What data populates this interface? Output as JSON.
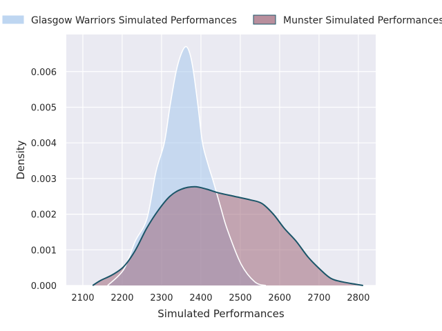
{
  "chart_data": {
    "type": "area",
    "title": "",
    "xlabel": "Simulated Performances",
    "ylabel": "Density",
    "xlim": [
      2058,
      2844
    ],
    "ylim": [
      0,
      0.00704
    ],
    "xticks": [
      2100,
      2200,
      2300,
      2400,
      2500,
      2600,
      2700,
      2800
    ],
    "yticks": [
      "0.000",
      "0.001",
      "0.002",
      "0.003",
      "0.004",
      "0.005",
      "0.006"
    ],
    "grid": true,
    "legend_position": "top-outside",
    "series": [
      {
        "name": "Glasgow Warriors Simulated Performances",
        "fill": "#a8c8ec",
        "line": "#ffffff",
        "points": [
          [
            2163,
            0
          ],
          [
            2204,
            0.00045
          ],
          [
            2233,
            0.00124
          ],
          [
            2263,
            0.00188
          ],
          [
            2286,
            0.0032
          ],
          [
            2307,
            0.004
          ],
          [
            2321,
            0.005
          ],
          [
            2337,
            0.006
          ],
          [
            2350,
            0.0065
          ],
          [
            2362,
            0.0067
          ],
          [
            2372,
            0.0065
          ],
          [
            2381,
            0.006
          ],
          [
            2393,
            0.005
          ],
          [
            2404,
            0.004
          ],
          [
            2418,
            0.0034
          ],
          [
            2432,
            0.0029
          ],
          [
            2450,
            0.0022
          ],
          [
            2467,
            0.00157
          ],
          [
            2502,
            0.0006
          ],
          [
            2537,
            0.0001
          ],
          [
            2565,
            0
          ]
        ]
      },
      {
        "name": "Munster Simulated Performances",
        "fill": "#a06a7c",
        "line": "#1a5568",
        "points": [
          [
            2125,
            0
          ],
          [
            2145,
            0.00014
          ],
          [
            2175,
            0.0003
          ],
          [
            2204,
            0.00053
          ],
          [
            2233,
            0.00098
          ],
          [
            2262,
            0.0016
          ],
          [
            2291,
            0.0021
          ],
          [
            2321,
            0.0025
          ],
          [
            2350,
            0.0027
          ],
          [
            2384,
            0.00277
          ],
          [
            2415,
            0.0027
          ],
          [
            2444,
            0.0026
          ],
          [
            2485,
            0.0025
          ],
          [
            2526,
            0.0024
          ],
          [
            2555,
            0.0023
          ],
          [
            2584,
            0.002
          ],
          [
            2612,
            0.0016
          ],
          [
            2642,
            0.00124
          ],
          [
            2672,
            0.0008
          ],
          [
            2702,
            0.00046
          ],
          [
            2730,
            0.0002
          ],
          [
            2760,
            0.0001
          ],
          [
            2812,
            0
          ]
        ]
      }
    ]
  }
}
